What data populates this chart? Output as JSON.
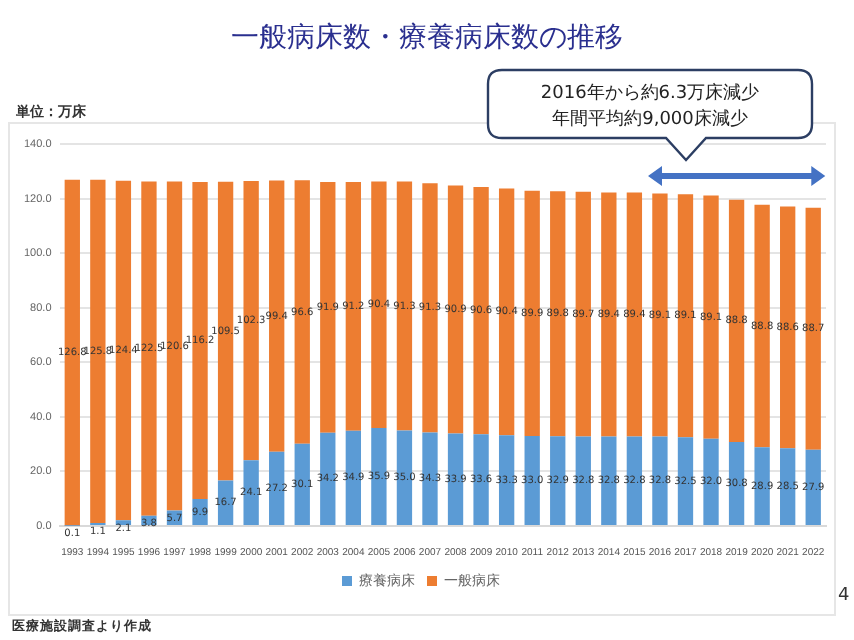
{
  "chart_data": {
    "type": "bar",
    "stacked": true,
    "title": "一般病床数・療養病床数の推移",
    "annotations": [
      "単位：万床",
      "2016年から約6.3万床減少",
      "年間平均約9,000床減少",
      "医療施設調査より作成",
      "4"
    ],
    "categories": [
      "1993",
      "1994",
      "1995",
      "1996",
      "1997",
      "1998",
      "1999",
      "2000",
      "2001",
      "2002",
      "2003",
      "2004",
      "2005",
      "2006",
      "2007",
      "2008",
      "2009",
      "2010",
      "2011",
      "2012",
      "2013",
      "2014",
      "2015",
      "2016",
      "2017",
      "2018",
      "2019",
      "2020",
      "2021",
      "2022"
    ],
    "series": [
      {
        "name": "療養病床",
        "color": "#5b9bd5",
        "values": [
          0.1,
          1.1,
          2.1,
          3.8,
          5.7,
          9.9,
          16.7,
          24.1,
          27.2,
          30.1,
          34.2,
          34.9,
          35.9,
          35.0,
          34.3,
          33.9,
          33.6,
          33.3,
          33.0,
          32.9,
          32.8,
          32.8,
          32.8,
          32.8,
          32.5,
          32.0,
          30.8,
          28.9,
          28.5,
          27.9
        ],
        "value_labels": [
          "0.1",
          "1.1",
          "2.1",
          "3.8",
          "5.7",
          "9.9",
          "16.7",
          "24.1",
          "27.2",
          "30.1",
          "34.2",
          "34.9",
          "35.9",
          "35.0",
          "34.3",
          "33.9",
          "33.6",
          "33.3",
          "33.0",
          "32.9",
          "32.8",
          "32.8",
          "32.8",
          "32.8",
          "32.5",
          "32.0",
          "30.8",
          "28.9",
          "28.5",
          "27.9"
        ]
      },
      {
        "name": "一般病床",
        "color": "#ed7d31",
        "values": [
          126.8,
          125.8,
          124.4,
          122.5,
          120.6,
          116.2,
          109.5,
          102.3,
          99.4,
          96.6,
          91.9,
          91.2,
          90.4,
          91.3,
          91.3,
          90.9,
          90.6,
          90.4,
          89.9,
          89.8,
          89.7,
          89.4,
          89.4,
          89.1,
          89.1,
          89.1,
          88.8,
          88.8,
          88.6,
          88.7
        ],
        "value_labels": [
          "126.8",
          "125.8",
          "124.4",
          "122.5",
          "120.6",
          "116.2",
          "109.5",
          "102.3",
          "99.4",
          "96.6",
          "91.9",
          "91.2",
          "90.4",
          "91.3",
          "91.3",
          "90.9",
          "90.6",
          "90.4",
          "89.9",
          "89.8",
          "89.7",
          "89.4",
          "89.4",
          "89.1",
          "89.1",
          "89.1",
          "88.8",
          "88.8",
          "88.6",
          "88.7"
        ]
      }
    ],
    "ylim": [
      0,
      140
    ],
    "yticks": [
      {
        "value": 0,
        "label": "0.0"
      },
      {
        "value": 20,
        "label": "20.0"
      },
      {
        "value": 40,
        "label": "40.0"
      },
      {
        "value": 60,
        "label": "60.0"
      },
      {
        "value": 80,
        "label": "80.0"
      },
      {
        "value": 100,
        "label": "100.0"
      },
      {
        "value": 120,
        "label": "120.0"
      },
      {
        "value": 140,
        "label": "140.0"
      }
    ],
    "grid": "y",
    "legend": "bottom"
  }
}
